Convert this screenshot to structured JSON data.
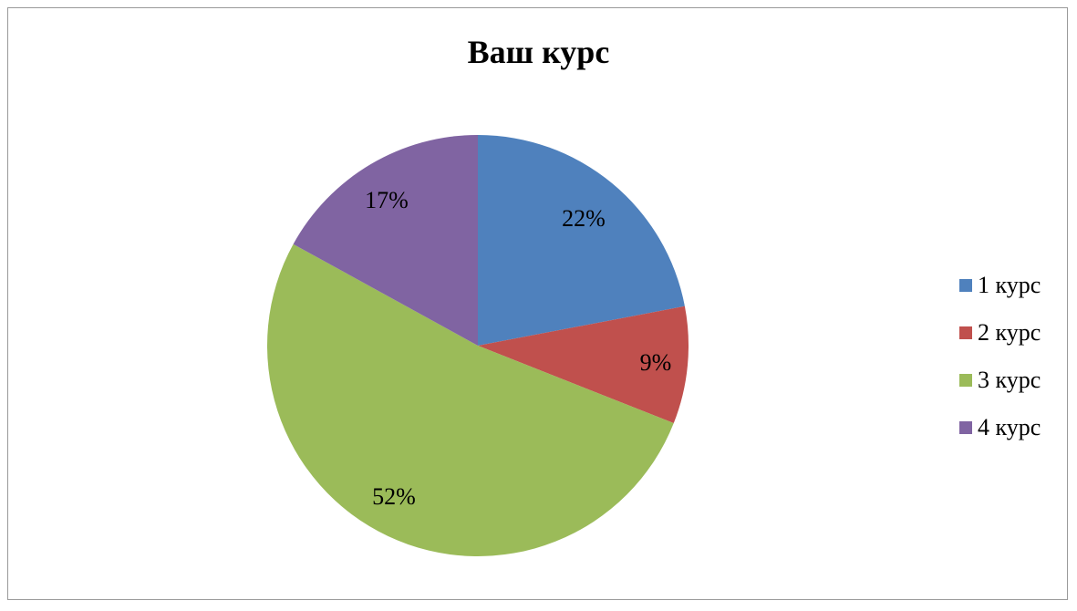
{
  "chart_data": {
    "type": "pie",
    "title": "Ваш курс",
    "categories": [
      "1 курс",
      "2 курс",
      "3 курс",
      "4 курс"
    ],
    "values": [
      22,
      9,
      52,
      17
    ],
    "labels": [
      "22%",
      "9%",
      "52%",
      "17%"
    ],
    "colors": [
      "#4f81bd",
      "#c0504d",
      "#9bbb59",
      "#8064a2"
    ],
    "legend_position": "right",
    "start_angle": "top, clockwise"
  }
}
